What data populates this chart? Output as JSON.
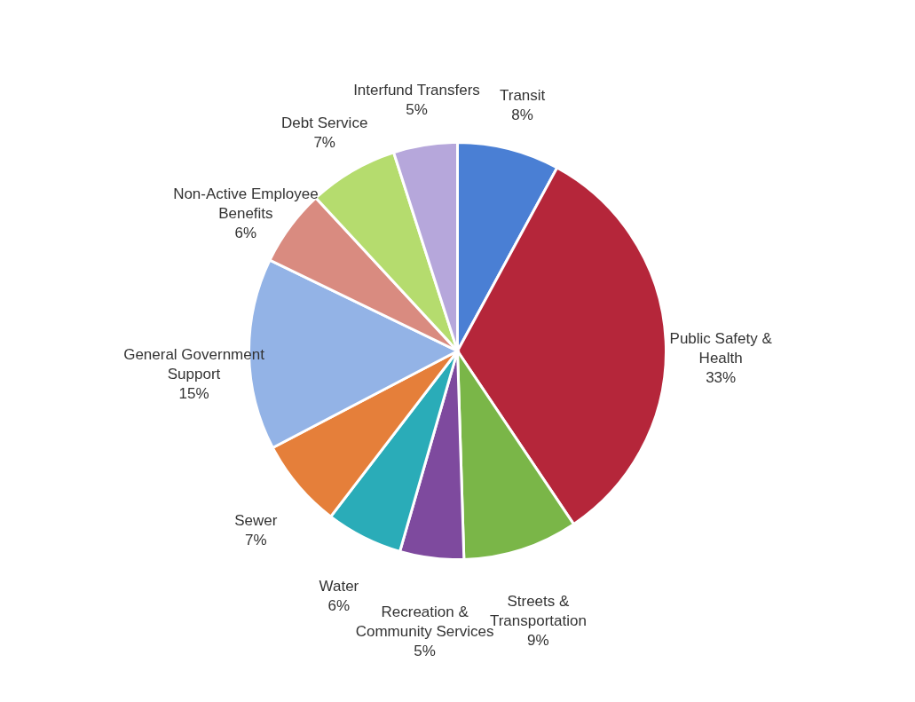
{
  "chart_data": {
    "type": "pie",
    "categories": [
      "Transit",
      "Public Safety & Health",
      "Streets & Transportation",
      "Recreation & Community Services",
      "Water",
      "Sewer",
      "General Government Support",
      "Non-Active Employee Benefits",
      "Debt Service",
      "Interfund Transfers"
    ],
    "values": [
      8,
      33,
      9,
      5,
      6,
      7,
      15,
      6,
      7,
      5
    ],
    "value_labels": [
      "8%",
      "33%",
      "9%",
      "5%",
      "6%",
      "7%",
      "15%",
      "6%",
      "7%",
      "5%"
    ],
    "colors": [
      "#4a7fd4",
      "#b5263a",
      "#7ab648",
      "#7e4a9e",
      "#2aacb8",
      "#e57f3a",
      "#93b3e6",
      "#d98b80",
      "#b5dc6e",
      "#b6a7db"
    ],
    "legend": false
  }
}
